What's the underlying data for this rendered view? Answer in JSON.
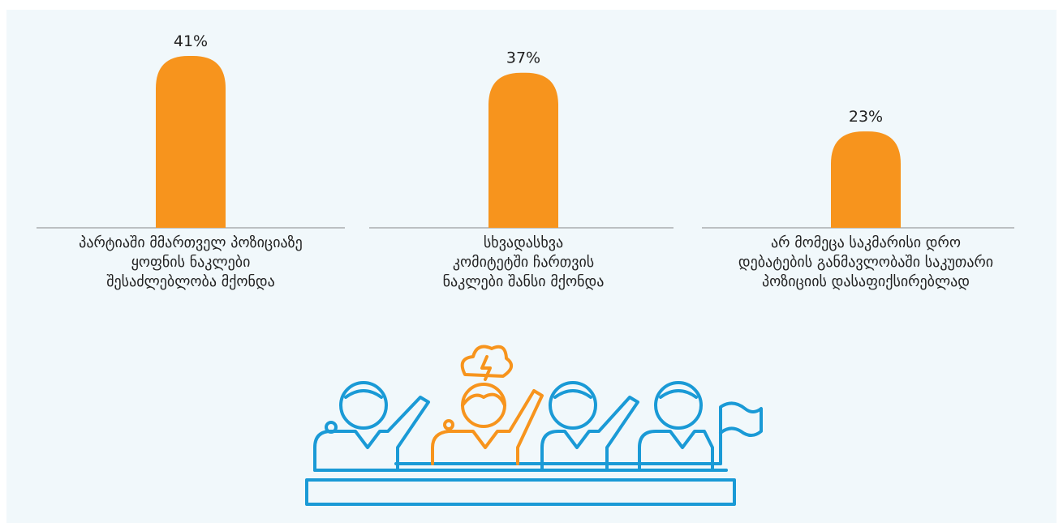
{
  "chart_data": {
    "type": "bar",
    "categories": [
      "პარტიაში მმართველ პოზიციაზე\nყოფნის ნაკლები\nშესაძლებლობა მქონდა",
      "სხვადასხვა\nკომიტეტში ჩართვის\nნაკლები შანსი მქონდა",
      "არ მომეცა საკმარისი დრო\nდებატების განმავლობაში საკუთარი\nპოზიციის დასაფიქსირებლად"
    ],
    "values": [
      41,
      37,
      23
    ],
    "value_labels": [
      "41%",
      "37%",
      "23%"
    ],
    "color": "#f7941d"
  }
}
